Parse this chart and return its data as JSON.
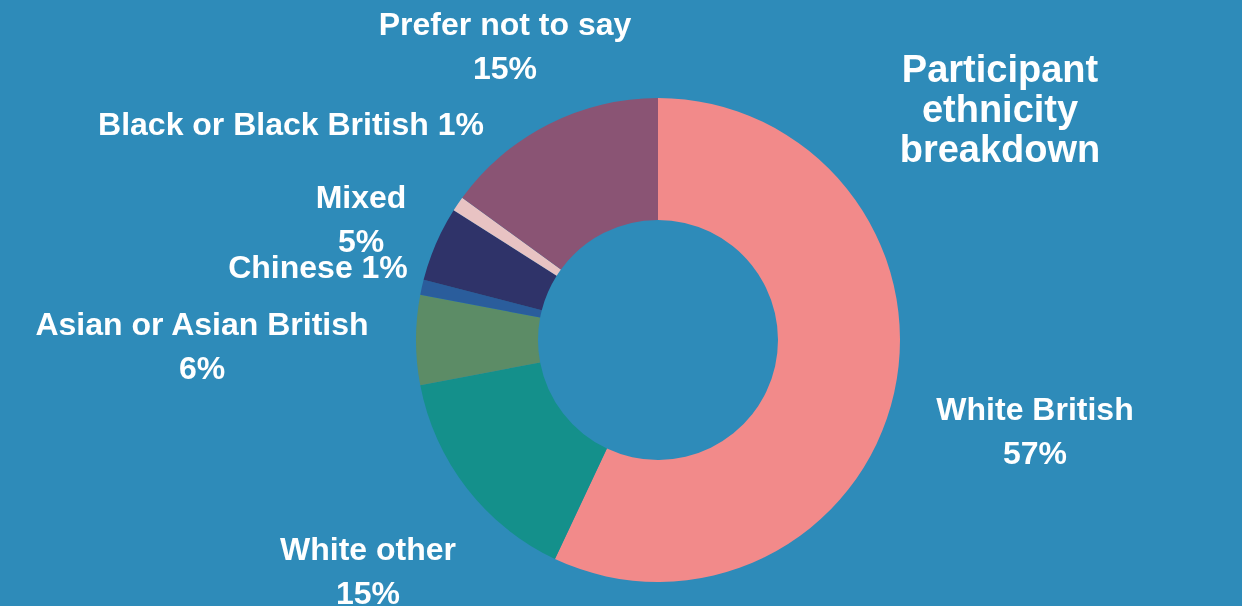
{
  "chart_data": {
    "type": "donut",
    "title": "Participant ethnicity breakdown",
    "categories": [
      "White British",
      "White other",
      "Asian or Asian British",
      "Chinese",
      "Mixed",
      "Black or Black British",
      "Prefer not to say"
    ],
    "values": [
      57,
      15,
      6,
      1,
      5,
      1,
      15
    ],
    "value_labels": [
      "57%",
      "15%",
      "6%",
      "1%",
      "5%",
      "1%",
      "15%"
    ],
    "colors": [
      "#f28a8a",
      "#14908b",
      "#5c8c66",
      "#2a5d9c",
      "#2f3369",
      "#e8c3c3",
      "#8a5474"
    ],
    "legend": false
  }
}
